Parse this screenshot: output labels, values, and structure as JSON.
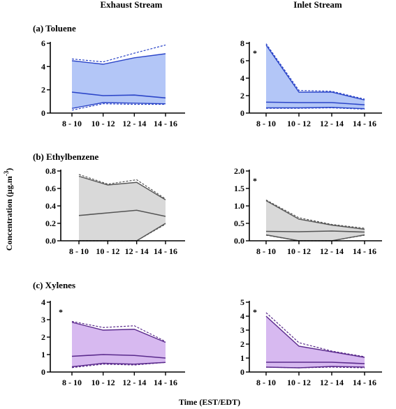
{
  "column_titles": [
    "Exhaust Stream",
    "Inlet Stream"
  ],
  "row_titles": [
    "(a) Toluene",
    "(b) Ethylbenzene",
    "(c) Xylenes"
  ],
  "ylabel_main": "Concentration (µg.m",
  "ylabel_sup": "-3",
  "ylabel_close": ")",
  "xlabel": "Time (EST/EDT)",
  "colors": {
    "toluene": "#2b45c8",
    "toluene_fill": "#b3c6f7",
    "ethylbenzene": "#555555",
    "ethylbenzene_fill": "#d9d9d9",
    "xylenes": "#5a2a8c",
    "xylenes_fill": "#d7b9f0"
  },
  "chart_data": [
    {
      "type": "area",
      "panel": "(a) Toluene",
      "stream": "Exhaust Stream",
      "categories": [
        "8 - 10",
        "10 - 12",
        "12 - 14",
        "14 - 16"
      ],
      "ylim": [
        0,
        6
      ],
      "yticks": [
        "0",
        "2",
        "4",
        "6"
      ],
      "grid": false,
      "color_key": "toluene",
      "asterisk": false,
      "mean": [
        1.8,
        1.5,
        1.55,
        1.3
      ],
      "upper": [
        4.5,
        4.2,
        4.75,
        5.1
      ],
      "lower": [
        0.4,
        0.9,
        0.85,
        0.8
      ],
      "upper_dashed": [
        4.65,
        4.4,
        5.15,
        5.85
      ],
      "lower_dashed": [
        0.25,
        0.8,
        0.75,
        0.75
      ]
    },
    {
      "type": "area",
      "panel": "(a) Toluene",
      "stream": "Inlet Stream",
      "categories": [
        "8 - 10",
        "10 - 12",
        "12 - 14",
        "14 - 16"
      ],
      "ylim": [
        0,
        8
      ],
      "yticks": [
        "0",
        "2",
        "4",
        "6",
        "8"
      ],
      "grid": false,
      "color_key": "toluene",
      "asterisk": true,
      "mean": [
        1.25,
        1.2,
        1.2,
        0.95
      ],
      "upper": [
        7.8,
        2.4,
        2.4,
        1.5
      ],
      "lower": [
        0.6,
        0.6,
        0.65,
        0.5
      ],
      "upper_dashed": [
        7.95,
        2.6,
        2.5,
        1.6
      ],
      "lower_dashed": [
        0.55,
        0.55,
        0.6,
        0.45
      ]
    },
    {
      "type": "area",
      "panel": "(b) Ethylbenzene",
      "stream": "Exhaust Stream",
      "categories": [
        "8 - 10",
        "10 - 12",
        "12 - 14",
        "14 - 16"
      ],
      "ylim": [
        0,
        0.8
      ],
      "yticks": [
        "0.0",
        "0.2",
        "0.4",
        "0.6",
        "0.8"
      ],
      "grid": false,
      "color_key": "ethylbenzene",
      "asterisk": false,
      "mean": [
        0.29,
        0.32,
        0.35,
        0.28
      ],
      "upper": [
        0.74,
        0.64,
        0.67,
        0.47
      ],
      "lower": [
        0.0,
        0.0,
        0.0,
        0.2
      ],
      "upper_dashed": [
        0.76,
        0.65,
        0.7,
        0.48
      ],
      "lower_dashed": [
        0.0,
        0.0,
        0.0,
        0.19
      ]
    },
    {
      "type": "area",
      "panel": "(b) Ethylbenzene",
      "stream": "Inlet Stream",
      "categories": [
        "8 - 10",
        "10 - 12",
        "12 - 14",
        "14 - 16"
      ],
      "ylim": [
        0,
        2.0
      ],
      "yticks": [
        "0.0",
        "0.5",
        "1.0",
        "1.5",
        "2.0"
      ],
      "grid": false,
      "color_key": "ethylbenzene",
      "asterisk": true,
      "mean": [
        0.27,
        0.26,
        0.28,
        0.25
      ],
      "upper": [
        1.15,
        0.62,
        0.45,
        0.33
      ],
      "lower": [
        0.17,
        0.0,
        0.0,
        0.17
      ],
      "upper_dashed": [
        1.17,
        0.66,
        0.47,
        0.36
      ],
      "lower_dashed": [
        0.16,
        0.0,
        0.0,
        0.16
      ]
    },
    {
      "type": "area",
      "panel": "(c) Xylenes",
      "stream": "Exhaust Stream",
      "categories": [
        "8 - 10",
        "10 - 12",
        "12 - 14",
        "14 - 16"
      ],
      "ylim": [
        0,
        4
      ],
      "yticks": [
        "0",
        "1",
        "2",
        "3",
        "4"
      ],
      "grid": false,
      "color_key": "xylenes",
      "asterisk": true,
      "mean": [
        0.9,
        1.0,
        0.95,
        0.8
      ],
      "upper": [
        2.85,
        2.4,
        2.45,
        1.7
      ],
      "lower": [
        0.3,
        0.5,
        0.45,
        0.55
      ],
      "upper_dashed": [
        2.9,
        2.55,
        2.65,
        1.75
      ],
      "lower_dashed": [
        0.25,
        0.45,
        0.4,
        0.55
      ]
    },
    {
      "type": "area",
      "panel": "(c) Xylenes",
      "stream": "Inlet Stream",
      "categories": [
        "8 - 10",
        "10 - 12",
        "12 - 14",
        "14 - 16"
      ],
      "ylim": [
        0,
        5
      ],
      "yticks": [
        "0",
        "1",
        "2",
        "3",
        "4",
        "5"
      ],
      "grid": false,
      "color_key": "xylenes",
      "asterisk": true,
      "mean": [
        0.7,
        0.7,
        0.7,
        0.6
      ],
      "upper": [
        4.0,
        1.85,
        1.45,
        1.05
      ],
      "lower": [
        0.35,
        0.3,
        0.4,
        0.35
      ],
      "upper_dashed": [
        4.25,
        2.1,
        1.5,
        1.1
      ],
      "lower_dashed": [
        0.35,
        0.3,
        0.35,
        0.3
      ]
    }
  ]
}
